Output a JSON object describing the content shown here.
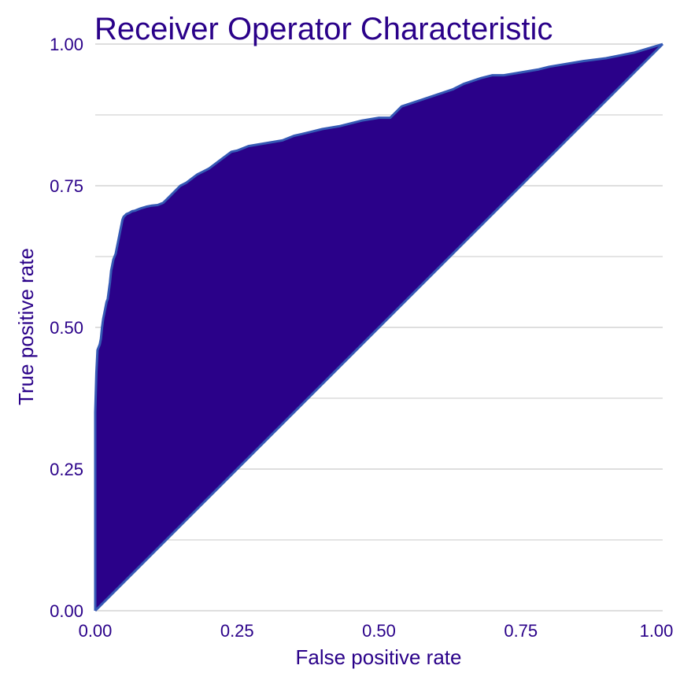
{
  "chart_data": {
    "type": "area",
    "title": "Receiver Operator Characteristic",
    "xlabel": "False positive rate",
    "ylabel": "True positive rate",
    "xlim": [
      0,
      1
    ],
    "ylim": [
      0,
      1
    ],
    "x_ticks": [
      0,
      0.25,
      0.5,
      0.75,
      1
    ],
    "x_tick_labels": [
      "0.00",
      "0.25",
      "0.50",
      "0.75",
      "1.00"
    ],
    "y_ticks": [
      0,
      0.25,
      0.5,
      0.75,
      1
    ],
    "y_tick_labels": [
      "0.00",
      "0.25",
      "0.50",
      "0.75",
      "1.00"
    ],
    "grid": "horizontal",
    "legend": "none",
    "series": [
      {
        "x": [
          0,
          0,
          0.002,
          0.004,
          0.006,
          0.008,
          0.01,
          0.012,
          0.014,
          0.016,
          0.018,
          0.02,
          0.022,
          0.024,
          0.026,
          0.028,
          0.03,
          0.032,
          0.034,
          0.036,
          0.038,
          0.04,
          0.042,
          0.044,
          0.046,
          0.048,
          0.05,
          0.052,
          0.055,
          0.06,
          0.065,
          0.07,
          0.08,
          0.09,
          0.1,
          0.11,
          0.12,
          0.13,
          0.14,
          0.15,
          0.16,
          0.18,
          0.2,
          0.22,
          0.24,
          0.25,
          0.27,
          0.3,
          0.33,
          0.35,
          0.38,
          0.4,
          0.43,
          0.45,
          0.47,
          0.5,
          0.52,
          0.54,
          0.57,
          0.6,
          0.63,
          0.65,
          0.68,
          0.7,
          0.72,
          0.75,
          0.78,
          0.8,
          0.83,
          0.86,
          0.9,
          0.95,
          1.0
        ],
        "y": [
          0,
          0.35,
          0.42,
          0.46,
          0.465,
          0.47,
          0.48,
          0.5,
          0.515,
          0.525,
          0.535,
          0.545,
          0.55,
          0.565,
          0.58,
          0.6,
          0.61,
          0.62,
          0.625,
          0.63,
          0.64,
          0.65,
          0.66,
          0.67,
          0.68,
          0.69,
          0.695,
          0.697,
          0.7,
          0.702,
          0.705,
          0.706,
          0.71,
          0.713,
          0.715,
          0.716,
          0.72,
          0.73,
          0.74,
          0.75,
          0.755,
          0.77,
          0.78,
          0.795,
          0.81,
          0.812,
          0.82,
          0.825,
          0.83,
          0.838,
          0.845,
          0.85,
          0.855,
          0.86,
          0.865,
          0.87,
          0.87,
          0.89,
          0.9,
          0.91,
          0.92,
          0.93,
          0.94,
          0.945,
          0.945,
          0.95,
          0.955,
          0.96,
          0.965,
          0.97,
          0.975,
          0.985,
          1.0
        ]
      }
    ],
    "reference_line": {
      "x": [
        0,
        1
      ],
      "y": [
        0,
        1
      ]
    },
    "colors": {
      "fill": "#2a0189",
      "line": "#3559b5",
      "text": "#2a0189",
      "grid": "#dedede",
      "background": "#ffffff"
    }
  }
}
